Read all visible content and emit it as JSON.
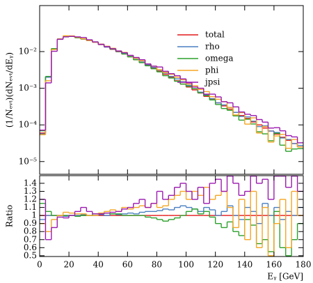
{
  "chart_data": [
    {
      "type": "histogram",
      "ylabel": "(1/Nₑᵥₜ)(dNₑᵥₜ/dEᵧ)",
      "bins": [
        0,
        4,
        8,
        12,
        16,
        20,
        24,
        28,
        32,
        36,
        40,
        44,
        48,
        52,
        56,
        60,
        64,
        68,
        72,
        76,
        80,
        84,
        88,
        92,
        96,
        100,
        104,
        108,
        112,
        116,
        120,
        124,
        128,
        132,
        136,
        140,
        144,
        148,
        152,
        156,
        160,
        164,
        168,
        172,
        176,
        180
      ],
      "xlim": [
        0,
        180
      ],
      "xticks": [
        0,
        20,
        40,
        60,
        80,
        100,
        120,
        140,
        160,
        180
      ],
      "log_y": true,
      "ylim": [
        4.5e-06,
        0.18
      ],
      "yticks": [
        {
          "value": 1e-05,
          "label": "10⁻⁵"
        },
        {
          "value": 0.0001,
          "label": "10⁻⁴"
        },
        {
          "value": 0.001,
          "label": "10⁻³"
        },
        {
          "value": 0.01,
          "label": "10⁻²"
        }
      ],
      "legend": "upper right",
      "series": [
        {
          "name": "total",
          "color": "#e41a1c",
          "values": [
            6e-05,
            0.002,
            0.012,
            0.022,
            0.026,
            0.026,
            0.024,
            0.022,
            0.02,
            0.018,
            0.0155,
            0.0133,
            0.0115,
            0.0099,
            0.0086,
            0.0072,
            0.006,
            0.005,
            0.0042,
            0.0035,
            0.0029,
            0.0024,
            0.002,
            0.0016,
            0.0013,
            0.00108,
            0.0009,
            0.00074,
            0.0006,
            0.00049,
            0.0004,
            0.00033,
            0.00027,
            0.00022,
            0.00018,
            0.00015,
            0.00012,
            0.0001,
            8.2e-05,
            6.8e-05,
            5.6e-05,
            4.6e-05,
            3.8e-05,
            3.1e-05,
            2.5e-05
          ]
        },
        {
          "name": "rho",
          "color": "#4a7fc1",
          "values": [
            5.7e-05,
            0.002,
            0.012,
            0.022,
            0.0257,
            0.026,
            0.024,
            0.0222,
            0.02,
            0.018,
            0.0157,
            0.0133,
            0.0117,
            0.01,
            0.0088,
            0.0074,
            0.0061,
            0.0052,
            0.0044,
            0.0037,
            0.0031,
            0.0026,
            0.0021,
            0.0018,
            0.0015,
            0.0012,
            0.00097,
            0.00078,
            0.00066,
            0.00052,
            0.0004,
            0.00035,
            0.0003,
            0.00022,
            0.00017,
            0.000165,
            0.000126,
            9e-05,
            9.4e-05,
            6.8e-05,
            6.2e-05,
            4.4e-05,
            4e-05,
            3.1e-05,
            2.75e-05
          ]
        },
        {
          "name": "omega",
          "color": "#2ca02c",
          "values": [
            6.9e-05,
            0.0021,
            0.012,
            0.022,
            0.026,
            0.026,
            0.0238,
            0.022,
            0.02,
            0.0184,
            0.0158,
            0.0137,
            0.0117,
            0.0101,
            0.0086,
            0.0072,
            0.006,
            0.005,
            0.0041,
            0.0034,
            0.0028,
            0.0022,
            0.0019,
            0.00155,
            0.0013,
            0.00113,
            0.00097,
            0.00075,
            0.00063,
            0.00048,
            0.00036,
            0.00028,
            0.00025,
            0.000176,
            0.000135,
            0.000143,
            0.000106,
            6.5e-05,
            5.7e-05,
            3.7e-05,
            5.9e-05,
            2.8e-05,
            1.9e-05,
            2.2e-05,
            2.25e-05
          ]
        },
        {
          "name": "phi",
          "color": "#f5a623",
          "values": [
            5.4e-05,
            0.0016,
            0.0114,
            0.022,
            0.027,
            0.0268,
            0.0245,
            0.0224,
            0.02,
            0.018,
            0.016,
            0.014,
            0.0123,
            0.0104,
            0.0095,
            0.0078,
            0.0066,
            0.0056,
            0.0046,
            0.004,
            0.0032,
            0.0027,
            0.0024,
            0.002,
            0.0017,
            0.0013,
            0.00117,
            0.00093,
            0.00081,
            0.00059,
            0.0005,
            0.00043,
            0.0003,
            0.000187,
            0.000216,
            0.000105,
            0.000156,
            6e-05,
            9e-05,
            3.4e-05,
            5e-05,
            5.5e-05,
            2.3e-05,
            4e-05,
            2.5e-05
          ]
        },
        {
          "name": "jpsi",
          "color": "#9b19b0",
          "values": [
            7.2e-05,
            0.0014,
            0.0102,
            0.0216,
            0.0252,
            0.026,
            0.0252,
            0.0242,
            0.021,
            0.0184,
            0.0158,
            0.0137,
            0.012,
            0.0104,
            0.0093,
            0.0079,
            0.0069,
            0.006,
            0.0046,
            0.004,
            0.0038,
            0.0029,
            0.0025,
            0.0022,
            0.0018,
            0.0014,
            0.00108,
            0.001,
            0.00069,
            0.00069,
            0.00058,
            0.00043,
            0.0004,
            0.00031,
            0.000225,
            0.000195,
            0.00018,
            0.00014,
            0.000119,
            8.2e-05,
            8.4e-05,
            6.9e-05,
            5.1e-05,
            4.7e-05,
            3.25e-05
          ]
        }
      ]
    },
    {
      "type": "histogram",
      "ylabel": "Ratio",
      "xlabel": "Eᵧ [GeV]",
      "bins": [
        0,
        4,
        8,
        12,
        16,
        20,
        24,
        28,
        32,
        36,
        40,
        44,
        48,
        52,
        56,
        60,
        64,
        68,
        72,
        76,
        80,
        84,
        88,
        92,
        96,
        100,
        104,
        108,
        112,
        116,
        120,
        124,
        128,
        132,
        136,
        140,
        144,
        148,
        152,
        156,
        160,
        164,
        168,
        172,
        176,
        180
      ],
      "xlim": [
        0,
        180
      ],
      "xticks": [
        0,
        20,
        40,
        60,
        80,
        100,
        120,
        140,
        160,
        180
      ],
      "ylim": [
        0.49,
        1.495
      ],
      "yticks": [
        0.5,
        0.6,
        0.7,
        0.8,
        0.9,
        1,
        1.1,
        1.2,
        1.3,
        1.4
      ],
      "series": [
        {
          "name": "total",
          "color": "#e41a1c",
          "values": [
            1,
            1,
            1,
            1,
            1,
            1,
            1,
            1,
            1,
            1,
            1,
            1,
            1,
            1,
            1,
            1,
            1,
            1,
            1,
            1,
            1,
            1,
            1,
            1,
            1,
            1,
            1,
            1,
            1,
            1,
            1,
            1,
            1,
            1,
            1,
            1,
            1,
            1,
            1,
            1,
            1,
            1,
            1,
            1,
            1
          ]
        },
        {
          "name": "rho",
          "color": "#4a7fc1",
          "values": [
            0.95,
            1,
            1,
            1,
            0.99,
            1,
            1,
            1.01,
            1,
            1,
            1.01,
            1,
            1.02,
            1.01,
            1.02,
            1.03,
            1.02,
            1.04,
            1.05,
            1.05,
            1.06,
            1.08,
            1.07,
            1.1,
            1.12,
            1.1,
            1.08,
            1.05,
            1.1,
            1.07,
            1,
            1.05,
            1.12,
            1,
            0.95,
            1.1,
            1.05,
            0.9,
            1.15,
            1,
            1.1,
            0.95,
            1.05,
            1,
            1.1
          ]
        },
        {
          "name": "omega",
          "color": "#2ca02c",
          "values": [
            1.15,
            1.05,
            1,
            1,
            1,
            1,
            0.99,
            1,
            1,
            1.02,
            1.02,
            1.03,
            1.02,
            1.02,
            1,
            1,
            1,
            1,
            0.98,
            0.97,
            0.95,
            0.93,
            0.95,
            0.97,
            1,
            1.05,
            1.08,
            1.02,
            1.05,
            0.98,
            0.9,
            0.85,
            0.92,
            0.8,
            0.75,
            0.95,
            0.88,
            0.65,
            0.7,
            0.55,
            1.05,
            0.6,
            0.5,
            0.7,
            0.9
          ]
        },
        {
          "name": "phi",
          "color": "#f5a623",
          "values": [
            0.9,
            0.8,
            0.95,
            1,
            1.04,
            1.03,
            1.02,
            1.02,
            1,
            1,
            1.03,
            1.05,
            1.07,
            1.05,
            1.1,
            1.08,
            1.1,
            1.12,
            1.1,
            1.15,
            1.1,
            1.12,
            1.2,
            1.25,
            1.3,
            1.2,
            1.3,
            1.25,
            1.35,
            1.2,
            1.25,
            1.3,
            1.1,
            0.85,
            1.2,
            0.7,
            1.3,
            0.6,
            1.1,
            0.5,
            0.9,
            1.2,
            0.6,
            1.3,
            1
          ]
        },
        {
          "name": "jpsi",
          "color": "#9b19b0",
          "values": [
            1.2,
            0.7,
            0.85,
            0.98,
            0.97,
            1,
            1.05,
            1.1,
            1.05,
            1.02,
            1.02,
            1.03,
            1.04,
            1.05,
            1.08,
            1.1,
            1.15,
            1.2,
            1.1,
            1.15,
            1.3,
            1.2,
            1.25,
            1.35,
            1.4,
            1.3,
            1.2,
            1.35,
            1.15,
            1.4,
            1.45,
            1.3,
            1.49,
            1.4,
            1.25,
            1.3,
            1.49,
            1.4,
            1.45,
            1.2,
            1.49,
            1.49,
            1.35,
            1.49,
            1.3
          ]
        }
      ]
    }
  ]
}
